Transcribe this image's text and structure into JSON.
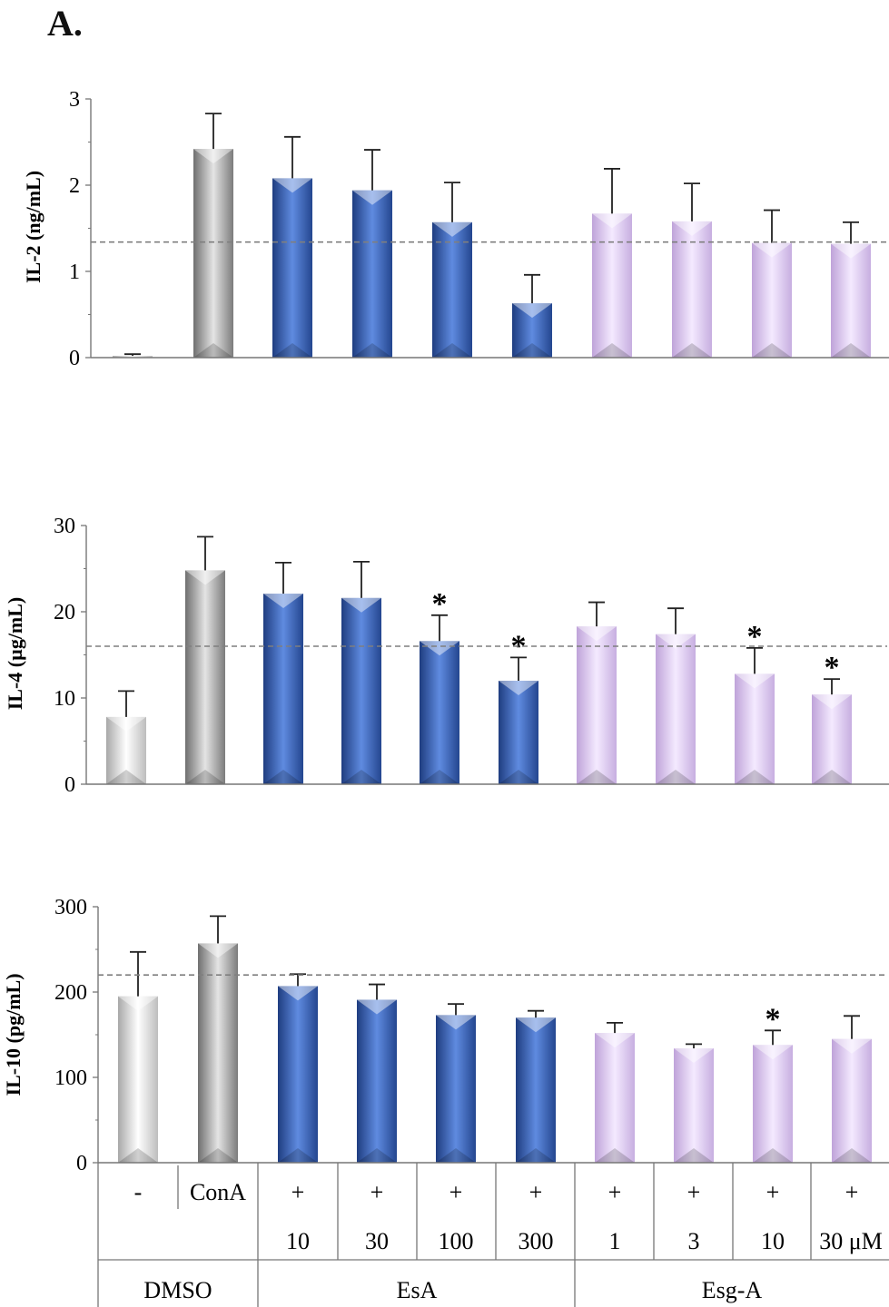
{
  "figure": {
    "panel_label": "A."
  },
  "colors": {
    "white": "#f4f4f4",
    "gray": "#a9a9a9",
    "blue": "#3a64b8",
    "lavender": "#dcc8ee",
    "dashed_line": "#7f7f7f"
  },
  "chart_data": [
    {
      "type": "bar",
      "ylabel": "IL-2 (ng/mL)",
      "ylim": [
        0,
        3
      ],
      "yticks": [
        "0",
        "1",
        "2",
        "3"
      ],
      "values": [
        0.02,
        2.42,
        2.08,
        1.94,
        1.57,
        0.63,
        1.67,
        1.58,
        1.33,
        1.32
      ],
      "errors": [
        0.02,
        0.41,
        0.48,
        0.47,
        0.46,
        0.33,
        0.52,
        0.44,
        0.38,
        0.25
      ],
      "colors": [
        "white",
        "gray",
        "blue",
        "blue",
        "blue",
        "blue",
        "lavender",
        "lavender",
        "lavender",
        "lavender"
      ],
      "significant": [
        false,
        false,
        false,
        false,
        false,
        false,
        false,
        false,
        false,
        false
      ],
      "reference_line": 1.34,
      "grid": false
    },
    {
      "type": "bar",
      "ylabel": "IL-4 (µg/mL)",
      "ylim": [
        0,
        30
      ],
      "yticks": [
        "0",
        "10",
        "20",
        "30"
      ],
      "values": [
        7.8,
        24.8,
        22.1,
        21.6,
        16.6,
        12.0,
        18.3,
        17.4,
        12.8,
        10.4
      ],
      "errors": [
        3.0,
        3.9,
        3.6,
        4.2,
        3.0,
        2.7,
        2.8,
        3.0,
        3.0,
        1.8
      ],
      "colors": [
        "white",
        "gray",
        "blue",
        "blue",
        "blue",
        "blue",
        "lavender",
        "lavender",
        "lavender",
        "lavender"
      ],
      "significant": [
        false,
        false,
        false,
        false,
        true,
        true,
        false,
        false,
        true,
        true
      ],
      "reference_line": 16.0,
      "grid": false
    },
    {
      "type": "bar",
      "ylabel": "IL-10 (pg/mL)",
      "ylim": [
        0,
        300
      ],
      "yticks": [
        "0",
        "100",
        "200",
        "300"
      ],
      "values": [
        195,
        257,
        207,
        191,
        173,
        170,
        152,
        134,
        138,
        145
      ],
      "errors": [
        52,
        32,
        14,
        18,
        13,
        8,
        12,
        5,
        17,
        27
      ],
      "colors": [
        "white",
        "gray",
        "blue",
        "blue",
        "blue",
        "blue",
        "lavender",
        "lavender",
        "lavender",
        "lavender"
      ],
      "significant": [
        false,
        false,
        false,
        false,
        false,
        false,
        false,
        false,
        true,
        false
      ],
      "reference_line": 220,
      "grid": false
    }
  ],
  "table": {
    "row1": [
      "-",
      "ConA",
      "+",
      "+",
      "+",
      "+",
      "+",
      "+",
      "+",
      "+"
    ],
    "row2": [
      "",
      "",
      "10",
      "30",
      "100",
      "300",
      "1",
      "3",
      "10",
      "30 μM"
    ],
    "groups": [
      "DMSO",
      "EsA",
      "Esg-A"
    ]
  }
}
